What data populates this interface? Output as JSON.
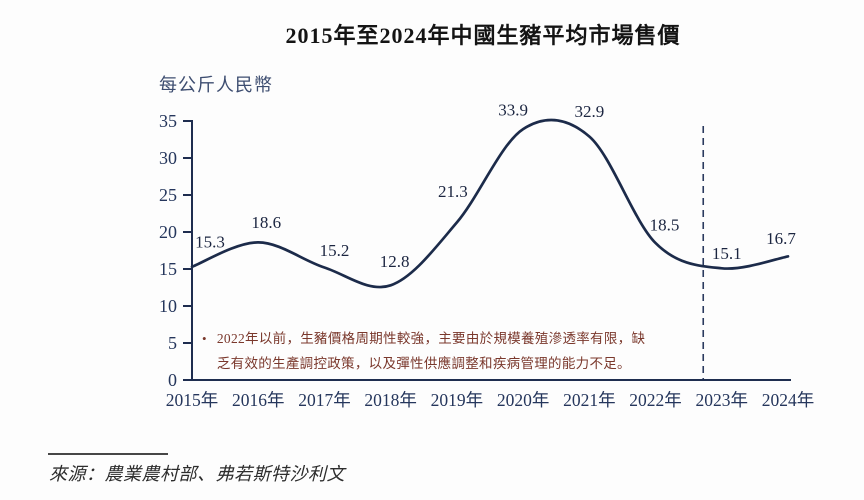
{
  "title": "2015年至2024年中國生豬平均市場售價",
  "y_axis_unit": "每公斤人民幣",
  "chart_data": {
    "type": "line",
    "title": "2015年至2024年中國生豬平均市場售價",
    "ylabel": "每公斤人民幣",
    "xlabel": "",
    "categories": [
      "2015年",
      "2016年",
      "2017年",
      "2018年",
      "2019年",
      "2020年",
      "2021年",
      "2022年",
      "2023年",
      "2024年"
    ],
    "values": [
      15.3,
      18.6,
      15.2,
      12.8,
      21.3,
      33.9,
      32.9,
      18.5,
      15.1,
      16.7
    ],
    "ylim": [
      0,
      35
    ],
    "y_ticks": [
      0,
      5,
      10,
      15,
      20,
      25,
      30,
      35
    ],
    "grid": false,
    "legend": "none",
    "smooth": true,
    "line_color": "#1c2b4a",
    "axis_color": "#1e2d4f",
    "tick_label_color": "#25365c",
    "data_label_color": "#1b2540",
    "divider_line": {
      "style": "dashed",
      "orientation": "vertical",
      "between_categories": [
        "2022年",
        "2023年"
      ],
      "color": "#2a3a5e"
    }
  },
  "annotation": {
    "bullet": "•",
    "text": "2022年以前，生豬價格周期性較強，主要由於規模養殖滲透率有限，缺乏有效的生產調控政策，以及彈性供應調整和疾病管理的能力不足。",
    "color": "#7a382c"
  },
  "source": {
    "text": "來源：農業農村部、弗若斯特沙利文"
  }
}
